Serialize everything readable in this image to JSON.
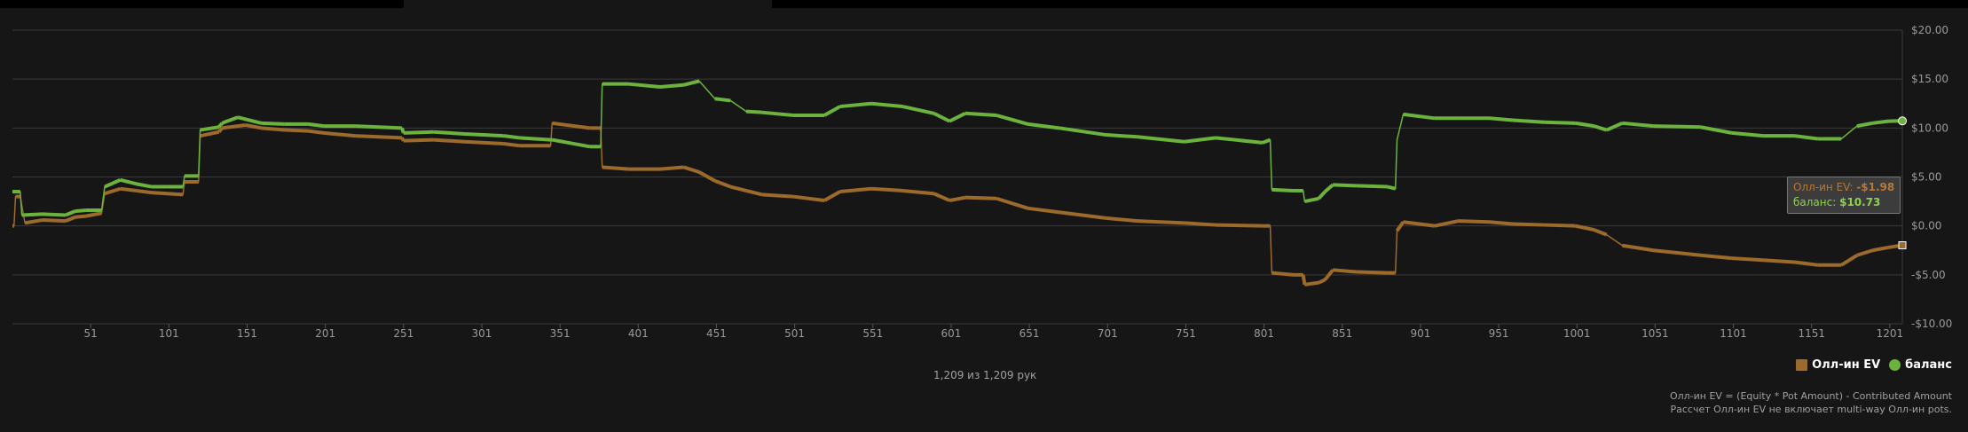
{
  "chart_data": {
    "type": "line",
    "x_label": "",
    "y_label": "",
    "xlim": [
      1,
      1209
    ],
    "ylim": [
      -10,
      20
    ],
    "y_ticks": [
      20,
      15,
      10,
      5,
      0,
      -5,
      -10
    ],
    "y_tick_labels": [
      "$20.00",
      "$15.00",
      "$10.00",
      "$5.00",
      "$0.00",
      "-$5.00",
      "-$10.00"
    ],
    "x_ticks": [
      51,
      101,
      151,
      201,
      251,
      301,
      351,
      401,
      451,
      501,
      551,
      601,
      651,
      701,
      751,
      801,
      851,
      901,
      951,
      1001,
      1051,
      1101,
      1151,
      1201
    ],
    "grid": true,
    "legend_position": "bottom-right",
    "series": [
      {
        "name": "Олл-ин EV",
        "color": "#9c6a2a",
        "points": [
          [
            1,
            0
          ],
          [
            2,
            0
          ],
          [
            3,
            3
          ],
          [
            6,
            3
          ],
          [
            9,
            0.3
          ],
          [
            20,
            0.6
          ],
          [
            35,
            0.5
          ],
          [
            41,
            0.9
          ],
          [
            48,
            1
          ],
          [
            58,
            1.3
          ],
          [
            60,
            3.3
          ],
          [
            70,
            3.8
          ],
          [
            80,
            3.6
          ],
          [
            90,
            3.4
          ],
          [
            100,
            3.3
          ],
          [
            110,
            3.2
          ],
          [
            111,
            4.5
          ],
          [
            120,
            4.5
          ],
          [
            121,
            9.2
          ],
          [
            133,
            9.6
          ],
          [
            135,
            10
          ],
          [
            150,
            10.3
          ],
          [
            160,
            10
          ],
          [
            175,
            9.8
          ],
          [
            190,
            9.7
          ],
          [
            200,
            9.5
          ],
          [
            220,
            9.2
          ],
          [
            250,
            9
          ],
          [
            251,
            8.7
          ],
          [
            270,
            8.8
          ],
          [
            290,
            8.6
          ],
          [
            315,
            8.4
          ],
          [
            325,
            8.2
          ],
          [
            345,
            8.2
          ],
          [
            346,
            10.5
          ],
          [
            370,
            10
          ],
          [
            377,
            10
          ],
          [
            378,
            6
          ],
          [
            395,
            5.8
          ],
          [
            415,
            5.8
          ],
          [
            430,
            6
          ],
          [
            440,
            5.5
          ],
          [
            450,
            4.6
          ],
          [
            460,
            4
          ],
          [
            470,
            3.6
          ],
          [
            480,
            3.2
          ],
          [
            500,
            3
          ],
          [
            520,
            2.6
          ],
          [
            530,
            3.5
          ],
          [
            550,
            3.8
          ],
          [
            570,
            3.6
          ],
          [
            590,
            3.3
          ],
          [
            600,
            2.6
          ],
          [
            610,
            2.9
          ],
          [
            630,
            2.8
          ],
          [
            650,
            1.8
          ],
          [
            670,
            1.4
          ],
          [
            700,
            0.8
          ],
          [
            720,
            0.5
          ],
          [
            750,
            0.3
          ],
          [
            770,
            0.1
          ],
          [
            800,
            0
          ],
          [
            805,
            0
          ],
          [
            806,
            -4.8
          ],
          [
            820,
            -5
          ],
          [
            826,
            -5
          ],
          [
            827,
            -6
          ],
          [
            836,
            -5.8
          ],
          [
            840,
            -5.5
          ],
          [
            845,
            -4.5
          ],
          [
            860,
            -4.7
          ],
          [
            880,
            -4.8
          ],
          [
            885,
            -4.8
          ],
          [
            886,
            -0.5
          ],
          [
            890,
            0.4
          ],
          [
            910,
            0
          ],
          [
            925,
            0.5
          ],
          [
            945,
            0.4
          ],
          [
            960,
            0.2
          ],
          [
            980,
            0.1
          ],
          [
            1000,
            0
          ],
          [
            1012,
            -0.4
          ],
          [
            1020,
            -0.9
          ],
          [
            1030,
            -2
          ],
          [
            1050,
            -2.5
          ],
          [
            1080,
            -3
          ],
          [
            1100,
            -3.3
          ],
          [
            1120,
            -3.5
          ],
          [
            1140,
            -3.7
          ],
          [
            1155,
            -4
          ],
          [
            1170,
            -4
          ],
          [
            1180,
            -3
          ],
          [
            1190,
            -2.5
          ],
          [
            1200,
            -2.2
          ],
          [
            1209,
            -1.98
          ]
        ]
      },
      {
        "name": "баланс",
        "color": "#6bb33c",
        "points": [
          [
            1,
            3.5
          ],
          [
            6,
            3.5
          ],
          [
            7,
            1.1
          ],
          [
            20,
            1.2
          ],
          [
            35,
            1.1
          ],
          [
            41,
            1.5
          ],
          [
            48,
            1.6
          ],
          [
            58,
            1.6
          ],
          [
            60,
            4
          ],
          [
            70,
            4.7
          ],
          [
            80,
            4.3
          ],
          [
            90,
            4
          ],
          [
            100,
            4
          ],
          [
            110,
            4
          ],
          [
            111,
            5.1
          ],
          [
            120,
            5.1
          ],
          [
            121,
            9.8
          ],
          [
            133,
            10.1
          ],
          [
            135,
            10.5
          ],
          [
            145,
            11.1
          ],
          [
            160,
            10.5
          ],
          [
            175,
            10.4
          ],
          [
            190,
            10.4
          ],
          [
            200,
            10.2
          ],
          [
            220,
            10.2
          ],
          [
            250,
            10
          ],
          [
            251,
            9.5
          ],
          [
            270,
            9.6
          ],
          [
            290,
            9.4
          ],
          [
            315,
            9.2
          ],
          [
            325,
            9
          ],
          [
            345,
            8.8
          ],
          [
            346,
            8.8
          ],
          [
            370,
            8.1
          ],
          [
            377,
            8.1
          ],
          [
            378,
            14.5
          ],
          [
            395,
            14.5
          ],
          [
            415,
            14.2
          ],
          [
            430,
            14.4
          ],
          [
            440,
            14.8
          ],
          [
            450,
            13
          ],
          [
            460,
            12.8
          ],
          [
            470,
            11.7
          ],
          [
            480,
            11.6
          ],
          [
            500,
            11.3
          ],
          [
            520,
            11.3
          ],
          [
            530,
            12.2
          ],
          [
            550,
            12.5
          ],
          [
            570,
            12.2
          ],
          [
            590,
            11.5
          ],
          [
            600,
            10.7
          ],
          [
            610,
            11.5
          ],
          [
            630,
            11.3
          ],
          [
            650,
            10.4
          ],
          [
            670,
            10
          ],
          [
            700,
            9.3
          ],
          [
            720,
            9.1
          ],
          [
            750,
            8.6
          ],
          [
            770,
            9
          ],
          [
            800,
            8.5
          ],
          [
            805,
            8.8
          ],
          [
            806,
            3.7
          ],
          [
            820,
            3.6
          ],
          [
            826,
            3.6
          ],
          [
            827,
            2.5
          ],
          [
            836,
            2.8
          ],
          [
            840,
            3.5
          ],
          [
            845,
            4.2
          ],
          [
            860,
            4.1
          ],
          [
            880,
            4
          ],
          [
            885,
            3.8
          ],
          [
            886,
            8.8
          ],
          [
            890,
            11.4
          ],
          [
            910,
            11
          ],
          [
            925,
            11
          ],
          [
            945,
            11
          ],
          [
            960,
            10.8
          ],
          [
            980,
            10.6
          ],
          [
            1000,
            10.5
          ],
          [
            1012,
            10.2
          ],
          [
            1020,
            9.8
          ],
          [
            1030,
            10.5
          ],
          [
            1050,
            10.2
          ],
          [
            1080,
            10.1
          ],
          [
            1100,
            9.5
          ],
          [
            1120,
            9.2
          ],
          [
            1140,
            9.2
          ],
          [
            1155,
            8.9
          ],
          [
            1170,
            8.9
          ],
          [
            1180,
            10.2
          ],
          [
            1190,
            10.5
          ],
          [
            1200,
            10.7
          ],
          [
            1209,
            10.73
          ]
        ]
      }
    ]
  },
  "hands_text": "1,209 из 1,209 рук",
  "legend": {
    "ev_label": "Олл-ин EV",
    "balance_label": "баланс"
  },
  "tooltip": {
    "ev_label": "Олл-ин EV:",
    "ev_value": "-$1.98",
    "balance_label": "баланс:",
    "balance_value": "$10.73"
  },
  "footnote": {
    "line1": "Олл-ин EV = (Equity * Pot Amount) - Contributed Amount",
    "line2": "Рассчет Олл-ин EV не включает multi-way Олл-ин pots."
  }
}
